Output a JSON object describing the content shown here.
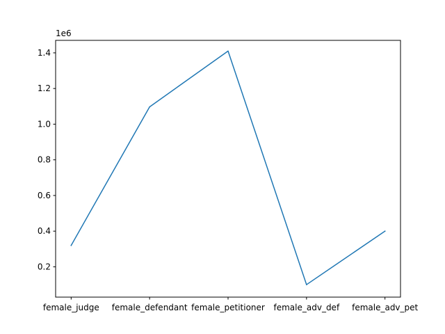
{
  "chart_data": {
    "type": "line",
    "categories": [
      "female_judge",
      "female_defendant",
      "female_petitioner",
      "female_adv_def",
      "female_adv_pet"
    ],
    "series": [
      {
        "values": [
          320000,
          1097000,
          1410000,
          100000,
          400000
        ]
      }
    ],
    "y_ticks": [
      0.2,
      0.4,
      0.6,
      0.8,
      1.0,
      1.2,
      1.4
    ],
    "y_tick_labels": [
      "0.2",
      "0.4",
      "0.6",
      "0.8",
      "1.0",
      "1.2",
      "1.4"
    ],
    "y_offset_label": "1e6",
    "ylim": [
      30000,
      1470000
    ],
    "grid": false,
    "line_color": "#1f77b4",
    "title": "",
    "xlabel": "",
    "ylabel": ""
  }
}
